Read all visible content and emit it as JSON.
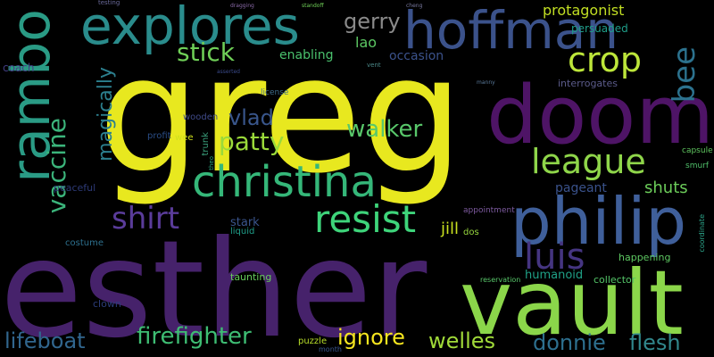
{
  "background": "#000000",
  "words": [
    {
      "text": "greg",
      "color": "#e8e81f"
    },
    {
      "text": "esther",
      "color": "#46226b"
    },
    {
      "text": "vault",
      "color": "#8bd64a"
    },
    {
      "text": "doom",
      "color": "#4e1466"
    },
    {
      "text": "philip",
      "color": "#3f5f9a"
    },
    {
      "text": "rambo",
      "color": "#2a9b85"
    },
    {
      "text": "explores",
      "color": "#2a8c8c"
    },
    {
      "text": "hoffman",
      "color": "#3b528b"
    },
    {
      "text": "christina",
      "color": "#35b779"
    },
    {
      "text": "resist",
      "color": "#3ed47a"
    },
    {
      "text": "league",
      "color": "#8fd64a"
    },
    {
      "text": "crop",
      "color": "#bde63a"
    },
    {
      "text": "bee",
      "color": "#2c728e"
    },
    {
      "text": "vaccine",
      "color": "#3bb47b"
    },
    {
      "text": "shirt",
      "color": "#5a3c9a"
    },
    {
      "text": "luis",
      "color": "#453581"
    },
    {
      "text": "patty",
      "color": "#9ad93a"
    },
    {
      "text": "walker",
      "color": "#58c76a"
    },
    {
      "text": "stick",
      "color": "#6fcf57"
    },
    {
      "text": "vlad",
      "color": "#39568c"
    },
    {
      "text": "magically",
      "color": "#2c7f8e"
    },
    {
      "text": "firefighter",
      "color": "#3ebd73"
    },
    {
      "text": "welles",
      "color": "#a0da39"
    },
    {
      "text": "flesh",
      "color": "#31878c"
    },
    {
      "text": "lifeboat",
      "color": "#31668e"
    },
    {
      "text": "ignore",
      "color": "#f6e61f"
    },
    {
      "text": "donnie",
      "color": "#2d6f8e"
    },
    {
      "text": "gerry",
      "color": "#8a8a8a"
    },
    {
      "text": "protagonist",
      "color": "#c2df23"
    },
    {
      "text": "shuts",
      "color": "#6ccd5a"
    },
    {
      "text": "pageant",
      "color": "#3a528b"
    },
    {
      "text": "jill",
      "color": "#c8e020"
    },
    {
      "text": "lao",
      "color": "#5cc863"
    },
    {
      "text": "enabling",
      "color": "#4ac16d"
    },
    {
      "text": "occasion",
      "color": "#3b528b"
    },
    {
      "text": "stark",
      "color": "#3a548c"
    },
    {
      "text": "persuaded",
      "color": "#1f9e89"
    },
    {
      "text": "interrogates",
      "color": "#5b5b8a"
    },
    {
      "text": "happening",
      "color": "#5ec962"
    },
    {
      "text": "humanoid",
      "color": "#1fa187"
    },
    {
      "text": "collector",
      "color": "#54c568"
    },
    {
      "text": "coach",
      "color": "#433e85"
    },
    {
      "text": "taunting",
      "color": "#67cc5c"
    },
    {
      "text": "puzzle",
      "color": "#b8de29"
    },
    {
      "text": "clown",
      "color": "#2c3d7a"
    },
    {
      "text": "costume",
      "color": "#2d708e"
    },
    {
      "text": "peaceful",
      "color": "#2d3a76"
    },
    {
      "text": "liquid",
      "color": "#1f9e89"
    },
    {
      "text": "license",
      "color": "#3e6c8a"
    },
    {
      "text": "wooden",
      "color": "#3f4a89"
    },
    {
      "text": "profit",
      "color": "#2a4d86"
    },
    {
      "text": "wee",
      "color": "#d0e11c"
    },
    {
      "text": "trunk",
      "color": "#3aa07c"
    },
    {
      "text": "appointment",
      "color": "#7e5ba0"
    },
    {
      "text": "dos",
      "color": "#98d83e"
    },
    {
      "text": "reservation",
      "color": "#58c66a"
    },
    {
      "text": "month",
      "color": "#39568c"
    },
    {
      "text": "capsule",
      "color": "#5fc55f"
    },
    {
      "text": "smurf",
      "color": "#4fc06a"
    },
    {
      "text": "coordinate",
      "color": "#2ca58a"
    },
    {
      "text": "testing",
      "color": "#6a6a9a"
    },
    {
      "text": "dragging",
      "color": "#8a6aa8"
    },
    {
      "text": "standoff",
      "color": "#6fcf57"
    },
    {
      "text": "cheng",
      "color": "#7a7aa0"
    },
    {
      "text": "vent",
      "color": "#4c8a8a"
    },
    {
      "text": "manny",
      "color": "#5a7a9a"
    },
    {
      "text": "asserted",
      "color": "#3a4a8a"
    },
    {
      "text": "theo",
      "color": "#2aa07c"
    }
  ]
}
